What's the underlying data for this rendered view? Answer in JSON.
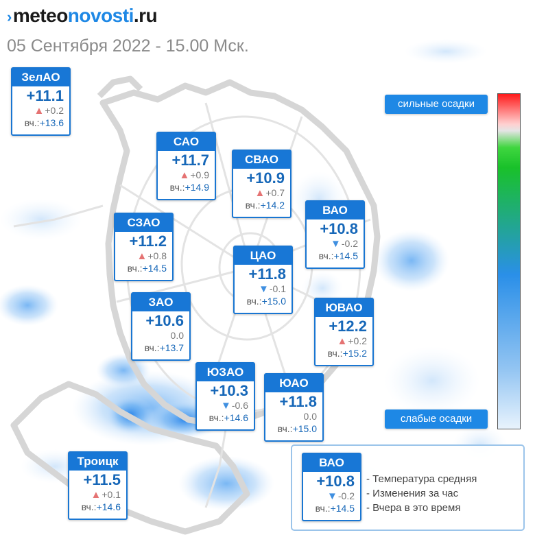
{
  "header": {
    "logo": {
      "part1": "meteo",
      "part2": "novosti",
      "part3": ".ru"
    },
    "subtitle": "05 Сентября 2022 - 15.00 Мск."
  },
  "labels": {
    "yesterday_prefix": "вч.:"
  },
  "districts": [
    {
      "name": "ЗелАО",
      "temp": "+11.1",
      "trend": "up",
      "delta": "+0.2",
      "yesterday": "+13.6"
    },
    {
      "name": "САО",
      "temp": "+11.7",
      "trend": "up",
      "delta": "+0.9",
      "yesterday": "+14.9"
    },
    {
      "name": "СВАО",
      "temp": "+10.9",
      "trend": "up",
      "delta": "+0.7",
      "yesterday": "+14.2"
    },
    {
      "name": "ВАО",
      "temp": "+10.8",
      "trend": "down",
      "delta": "-0.2",
      "yesterday": "+14.5"
    },
    {
      "name": "СЗАО",
      "temp": "+11.2",
      "trend": "up",
      "delta": "+0.8",
      "yesterday": "+14.5"
    },
    {
      "name": "ЦАО",
      "temp": "+11.8",
      "trend": "down",
      "delta": "-0.1",
      "yesterday": "+15.0"
    },
    {
      "name": "ЗАО",
      "temp": "+10.6",
      "trend": "none",
      "delta": "0.0",
      "yesterday": "+13.7"
    },
    {
      "name": "ЮВАО",
      "temp": "+12.2",
      "trend": "up",
      "delta": "+0.2",
      "yesterday": "+15.2"
    },
    {
      "name": "ЮЗАО",
      "temp": "+10.3",
      "trend": "down",
      "delta": "-0.6",
      "yesterday": "+14.6"
    },
    {
      "name": "ЮАО",
      "temp": "+11.8",
      "trend": "none",
      "delta": "0.0",
      "yesterday": "+15.0"
    },
    {
      "name": "Троицк",
      "temp": "+11.5",
      "trend": "up",
      "delta": "+0.1",
      "yesterday": "+14.6"
    }
  ],
  "precip_scale": {
    "top_label": "сильные осадки",
    "bottom_label": "слабые осадки",
    "colors": [
      "#ff1a1a",
      "#3fd63f",
      "#2a8fe8",
      "#e8f3fd"
    ]
  },
  "legend": {
    "example": {
      "name": "ВАО",
      "temp": "+10.8",
      "trend": "down",
      "delta": "-0.2",
      "yesterday": "+14.5"
    },
    "items": [
      "Температура средняя",
      "Изменения за час",
      "Вчера в это время"
    ]
  },
  "colors": {
    "accent": "#1877d6",
    "up": "#e57373",
    "down": "#3f8fe0"
  },
  "icons": {
    "logo_mark": "meteo-mark-icon",
    "up": "triangle-up-icon",
    "down": "triangle-down-icon"
  }
}
